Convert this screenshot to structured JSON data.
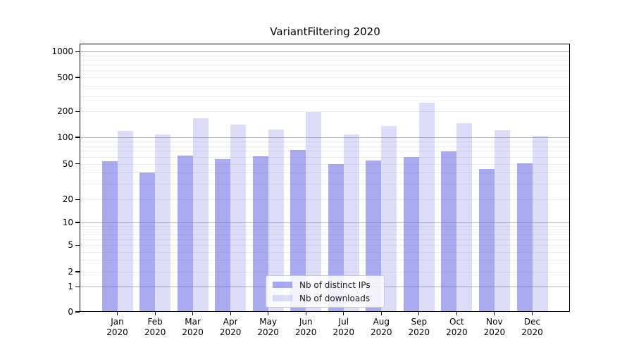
{
  "chart_data": {
    "type": "bar",
    "title": "VariantFiltering 2020",
    "categories": [
      "Jan 2020",
      "Feb 2020",
      "Mar 2020",
      "Apr 2020",
      "May 2020",
      "Jun 2020",
      "Jul 2020",
      "Aug 2020",
      "Sep 2020",
      "Oct 2020",
      "Nov 2020",
      "Dec 2020"
    ],
    "series": [
      {
        "name": "Nb of distinct IPs",
        "color": "rgba(85,85,225,0.50)",
        "values": [
          54,
          40,
          62,
          57,
          61,
          72,
          50,
          55,
          60,
          69,
          44,
          51
        ]
      },
      {
        "name": "Nb of downloads",
        "color": "rgba(85,85,225,0.20)",
        "values": [
          119,
          108,
          166,
          141,
          123,
          198,
          108,
          135,
          252,
          147,
          121,
          103
        ]
      }
    ],
    "yscale": "symlog",
    "yticks": [
      0,
      1,
      2,
      5,
      10,
      20,
      50,
      100,
      200,
      500,
      1000
    ],
    "ylim": [
      0,
      1250
    ],
    "grid": {
      "horizontal": true,
      "major_color": "#b1b1b1",
      "minor_color": "#ececec"
    },
    "legend": {
      "position": "lower center",
      "labels": [
        "Nb of distinct IPs",
        "Nb of downloads"
      ]
    }
  }
}
